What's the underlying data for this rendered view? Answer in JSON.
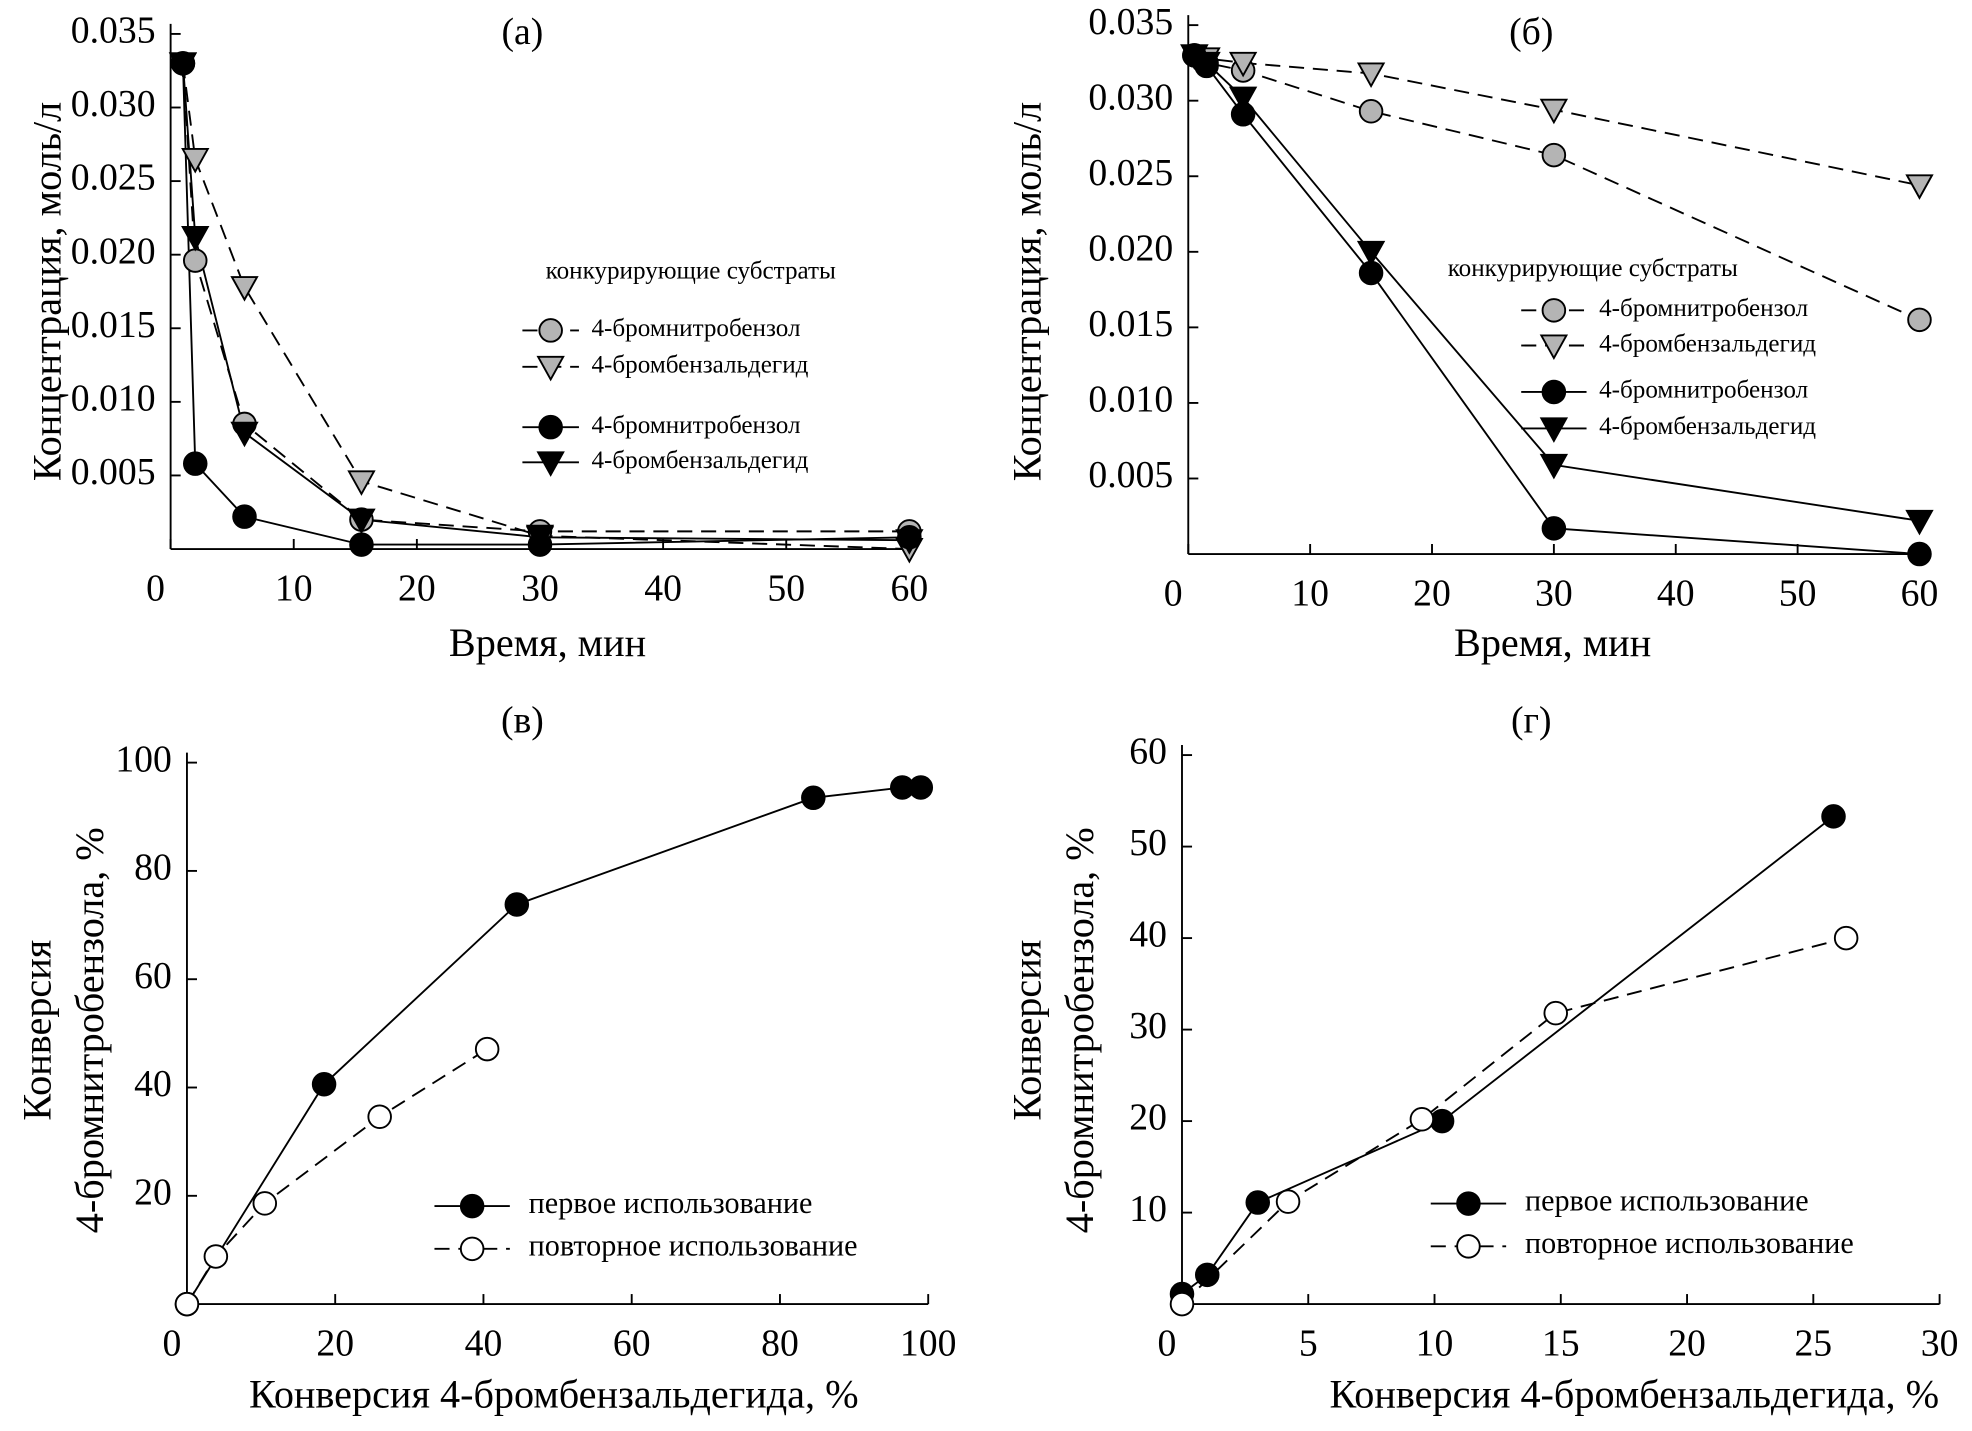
{
  "chart_data": [
    {
      "type": "line",
      "title": "(а)",
      "x_label": "Время, мин",
      "y_label": "Концентрация, моль/л",
      "xlim": [
        0,
        60
      ],
      "xticks": [
        0,
        10,
        20,
        30,
        40,
        50,
        60
      ],
      "ylim": [
        0,
        0.035
      ],
      "yticks": [
        0.005,
        {
          "value": 0.01,
          "label": "0.010"
        },
        0.015,
        {
          "value": 0.02,
          "label": "0.020"
        },
        0.025,
        {
          "value": 0.03,
          "label": "0.030"
        },
        0.035
      ],
      "legend_title": "конкурирующие субстраты",
      "series": [
        {
          "name": "4-бромнитробензол",
          "color": "#b4b4b4",
          "marker": "circle",
          "line_style": "dashed",
          "x": [
            1,
            2,
            6,
            15.5,
            30,
            60
          ],
          "values": [
            0.033,
            0.0196,
            0.0085,
            0.002,
            0.0012,
            0.0012
          ]
        },
        {
          "name": "4-бромбензальдегид",
          "color": "#b4b4b4",
          "marker": "triangle",
          "line_style": "dashed",
          "x": [
            1,
            2,
            6,
            15.5,
            30,
            60
          ],
          "values": [
            0.033,
            0.0265,
            0.0178,
            0.0046,
            0.0009,
            0.0
          ]
        },
        {
          "name": "4-бромнитробензол",
          "color": "#000000",
          "marker": "circle",
          "line_style": "solid",
          "x": [
            1,
            2,
            6,
            15.5,
            30,
            60
          ],
          "values": [
            0.033,
            0.0058,
            0.0022,
            0.0003,
            0.0003,
            0.0008
          ]
        },
        {
          "name": "4-бромбензальдегид",
          "color": "#000000",
          "marker": "triangle",
          "line_style": "solid",
          "x": [
            1,
            2,
            6,
            15.5,
            30,
            60
          ],
          "values": [
            0.033,
            0.0212,
            0.0079,
            0.002,
            0.0008,
            0.0006
          ]
        }
      ]
    },
    {
      "type": "line",
      "title": "(б)",
      "x_label": "Время, мин",
      "y_label": "Концентрация, моль/л",
      "xlim": [
        0,
        60
      ],
      "xticks": [
        0,
        10,
        20,
        30,
        40,
        50,
        60
      ],
      "ylim": [
        0,
        0.035
      ],
      "yticks": [
        0.005,
        {
          "value": 0.01,
          "label": "0.010"
        },
        0.015,
        {
          "value": 0.02,
          "label": "0.020"
        },
        0.025,
        {
          "value": 0.03,
          "label": "0.030"
        },
        0.035
      ],
      "legend_title": "конкурирующие субстраты",
      "series": [
        {
          "name": "4-бромнитробензол",
          "color": "#b4b4b4",
          "marker": "circle",
          "line_style": "dashed",
          "x": [
            0.5,
            1.5,
            4.5,
            15,
            30,
            60
          ],
          "values": [
            0.033,
            0.0325,
            0.032,
            0.0293,
            0.0264,
            0.0155
          ]
        },
        {
          "name": "4-бромбензальдегид",
          "color": "#b4b4b4",
          "marker": "triangle",
          "line_style": "dashed",
          "x": [
            0.5,
            1.5,
            4.5,
            15,
            30,
            60
          ],
          "values": [
            0.033,
            0.0328,
            0.0325,
            0.0318,
            0.0294,
            0.0244
          ]
        },
        {
          "name": "4-бромнитробензол",
          "color": "#000000",
          "marker": "circle",
          "line_style": "solid",
          "x": [
            0.5,
            1.5,
            4.5,
            15,
            30,
            60
          ],
          "values": [
            0.033,
            0.0323,
            0.0291,
            0.0186,
            0.0017,
            0.0
          ]
        },
        {
          "name": "4-бромбензальдегид",
          "color": "#000000",
          "marker": "triangle",
          "line_style": "solid",
          "x": [
            0.5,
            1.5,
            4.5,
            15,
            30,
            60
          ],
          "values": [
            0.033,
            0.0325,
            0.0302,
            0.02,
            0.0059,
            0.0022
          ]
        }
      ]
    },
    {
      "type": "line",
      "title": "(в)",
      "x_label": "Конверсия 4-бромбензальдегида, %",
      "y_label": [
        "Конверсия",
        "4-бромнитробензола, %"
      ],
      "xlim": [
        0,
        100
      ],
      "xticks": [
        0,
        20,
        40,
        60,
        80,
        100
      ],
      "ylim": [
        0,
        100
      ],
      "yticks": [
        20,
        40,
        60,
        80,
        100
      ],
      "series": [
        {
          "name": "первое использование",
          "color": "#000000",
          "marker": "circle",
          "line_style": "solid",
          "x": [
            0,
            18.5,
            44.5,
            84.5,
            96.5,
            99
          ],
          "values": [
            0,
            40.6,
            73.8,
            93.5,
            95.4,
            95.4
          ]
        },
        {
          "name": "повторное использование",
          "color": "#ffffff",
          "marker": "circle",
          "line_style": "dashed",
          "x": [
            0,
            3.9,
            10.5,
            26,
            40.5
          ],
          "values": [
            0,
            8.8,
            18.6,
            34.6,
            47.1
          ]
        }
      ]
    },
    {
      "type": "line",
      "title": "(г)",
      "x_label": "Конверсия 4-бромбензальдегида, %",
      "y_label": [
        "Конверсия",
        "4-бромнитробензола, %"
      ],
      "xlim": [
        0,
        30
      ],
      "xticks": [
        0,
        5,
        10,
        15,
        20,
        25,
        30
      ],
      "ylim": [
        0,
        60
      ],
      "yticks": [
        10,
        20,
        30,
        40,
        50,
        60
      ],
      "series": [
        {
          "name": "первое использование",
          "color": "#000000",
          "marker": "circle",
          "line_style": "solid",
          "x": [
            0,
            1,
            3,
            10.3,
            25.8
          ],
          "values": [
            1.1,
            3.2,
            11.1,
            20.0,
            53.3
          ]
        },
        {
          "name": "повторное использование",
          "color": "#ffffff",
          "marker": "circle",
          "line_style": "dashed",
          "x": [
            0,
            4.2,
            9.5,
            14.8,
            26.3
          ],
          "values": [
            0,
            11.2,
            20.2,
            31.8,
            40
          ]
        }
      ]
    }
  ]
}
